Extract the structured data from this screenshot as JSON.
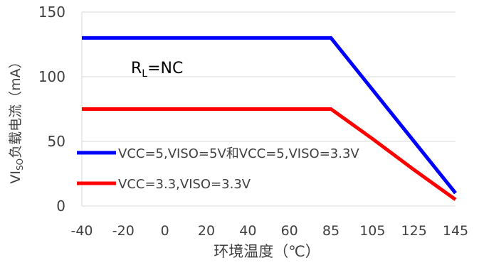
{
  "chart_data": {
    "type": "line",
    "title": "",
    "xlabel": "环境温度（℃）",
    "ylabel_prefix": "VI",
    "ylabel_sub": "SO",
    "ylabel_suffix": "负载电流（mA）",
    "categories": [
      "-40",
      "-20",
      "0",
      "20",
      "40",
      "60",
      "85",
      "105",
      "125",
      "145"
    ],
    "ylim": [
      0,
      150
    ],
    "yticks": [
      0,
      50,
      100,
      150
    ],
    "grid": "horizontal",
    "annotation_main": "R",
    "annotation_sub": "L",
    "annotation_rest": "=NC",
    "series": [
      {
        "name": "VCC=5,VISO=5V和VCC=5,VISO=3.3V",
        "color": "#0000FF",
        "values": [
          130,
          130,
          130,
          130,
          130,
          130,
          130,
          90,
          50,
          10
        ]
      },
      {
        "name": "VCC=3.3,VISO=3.3V",
        "color": "#FF0000",
        "values": [
          75,
          75,
          75,
          75,
          75,
          75,
          75,
          52,
          28,
          5
        ]
      }
    ]
  }
}
